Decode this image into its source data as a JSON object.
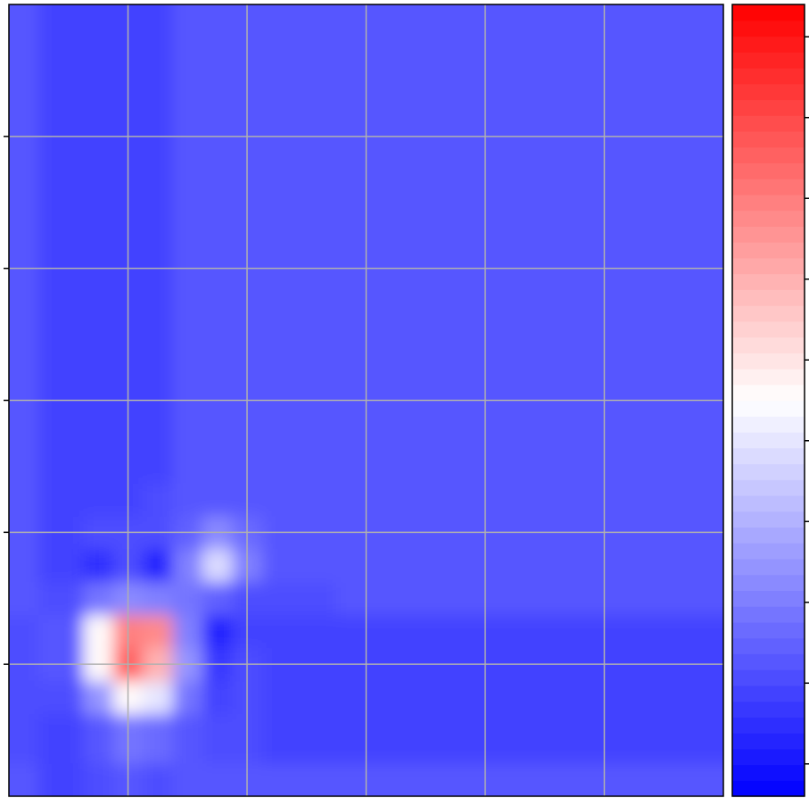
{
  "chart_data": {
    "type": "contour",
    "x": [
      0,
      0.5,
      0.75,
      1,
      1.25,
      1.5,
      1.75,
      2,
      2.25,
      2.5,
      3,
      3.5,
      4,
      4.5,
      5,
      5.5,
      6
    ],
    "y": [
      0,
      0.5,
      0.75,
      1,
      1.25,
      1.5,
      1.75,
      2,
      2.25,
      2.5,
      3,
      3.5,
      4,
      4.5,
      5,
      5.5,
      6
    ],
    "z": [
      [
        1.2,
        0.95,
        1.0,
        1.2,
        1.1,
        1.2,
        1.2,
        1.2,
        1.2,
        1.2,
        1.2,
        1.2,
        1.2,
        1.2,
        1.2,
        1.2,
        1.2
      ],
      [
        1.0,
        0.95,
        1.3,
        1.8,
        1.6,
        1.2,
        1.1,
        1.0,
        0.95,
        0.95,
        0.95,
        0.95,
        0.95,
        0.95,
        0.95,
        0.95,
        0.95
      ],
      [
        1.0,
        1.0,
        2.5,
        4.5,
        4.0,
        1.8,
        0.8,
        1.0,
        0.95,
        0.95,
        0.95,
        0.95,
        0.95,
        0.95,
        0.95,
        0.95,
        0.95
      ],
      [
        1.0,
        1.3,
        4.6,
        7.5,
        6.0,
        2.5,
        0.6,
        1.0,
        0.95,
        0.95,
        0.95,
        0.95,
        0.95,
        0.95,
        0.95,
        0.95,
        0.95
      ],
      [
        1.0,
        1.3,
        4.5,
        7.0,
        6.8,
        2.0,
        0.2,
        0.8,
        0.95,
        0.95,
        0.95,
        0.95,
        0.95,
        0.95,
        0.95,
        0.95,
        0.95
      ],
      [
        1.2,
        1.0,
        1.8,
        2.3,
        2.0,
        1.8,
        1.5,
        1.1,
        1.0,
        1.1,
        1.2,
        1.2,
        1.2,
        1.2,
        1.2,
        1.2,
        1.2
      ],
      [
        1.2,
        0.95,
        0.5,
        1.0,
        0.2,
        2.0,
        3.8,
        2.0,
        1.2,
        1.2,
        1.2,
        1.2,
        1.2,
        1.2,
        1.2,
        1.2,
        1.2
      ],
      [
        1.2,
        0.95,
        1.0,
        1.1,
        1.0,
        1.5,
        2.2,
        1.6,
        1.2,
        1.2,
        1.2,
        1.2,
        1.2,
        1.2,
        1.2,
        1.2,
        1.2
      ],
      [
        1.2,
        0.95,
        0.95,
        0.95,
        1.0,
        1.2,
        1.2,
        1.2,
        1.2,
        1.2,
        1.2,
        1.2,
        1.2,
        1.2,
        1.2,
        1.2,
        1.2
      ],
      [
        1.2,
        0.95,
        0.95,
        0.95,
        0.95,
        1.2,
        1.2,
        1.2,
        1.2,
        1.2,
        1.2,
        1.2,
        1.2,
        1.2,
        1.2,
        1.2,
        1.2
      ],
      [
        1.2,
        0.95,
        0.95,
        0.95,
        0.95,
        1.2,
        1.2,
        1.2,
        1.2,
        1.2,
        1.2,
        1.2,
        1.2,
        1.2,
        1.2,
        1.2,
        1.2
      ],
      [
        1.2,
        0.95,
        0.95,
        0.95,
        0.95,
        1.2,
        1.2,
        1.2,
        1.2,
        1.2,
        1.2,
        1.2,
        1.2,
        1.2,
        1.2,
        1.2,
        1.2
      ],
      [
        1.2,
        0.95,
        0.95,
        0.95,
        0.95,
        1.2,
        1.2,
        1.2,
        1.2,
        1.2,
        1.2,
        1.2,
        1.2,
        1.2,
        1.2,
        1.2,
        1.2
      ],
      [
        1.2,
        0.95,
        0.95,
        0.95,
        0.95,
        1.2,
        1.2,
        1.2,
        1.2,
        1.2,
        1.2,
        1.2,
        1.2,
        1.2,
        1.2,
        1.2,
        1.2
      ],
      [
        1.2,
        0.95,
        0.95,
        0.95,
        0.95,
        1.2,
        1.2,
        1.2,
        1.2,
        1.2,
        1.2,
        1.2,
        1.2,
        1.2,
        1.2,
        1.2,
        1.2
      ],
      [
        1.2,
        0.95,
        0.95,
        0.95,
        0.95,
        1.2,
        1.2,
        1.2,
        1.2,
        1.2,
        1.2,
        1.2,
        1.2,
        1.2,
        1.2,
        1.2,
        1.2
      ],
      [
        1.2,
        0.95,
        0.95,
        0.95,
        0.95,
        1.2,
        1.2,
        1.2,
        1.2,
        1.2,
        1.2,
        1.2,
        1.2,
        1.2,
        1.2,
        1.2,
        1.2
      ]
    ],
    "xlim": [
      0,
      6
    ],
    "ylim": [
      0,
      6
    ],
    "xticks": [
      1,
      2,
      3,
      4,
      5
    ],
    "yticks": [
      1,
      2,
      3,
      4,
      5
    ],
    "clim": [
      -0.4,
      9.4
    ],
    "cticks": [
      0,
      1,
      2,
      3,
      4,
      5,
      6,
      7,
      8,
      9
    ],
    "colormap": [
      "#0000ff",
      "#ffffff",
      "#ff0000"
    ],
    "levels": 50,
    "grid": true
  }
}
